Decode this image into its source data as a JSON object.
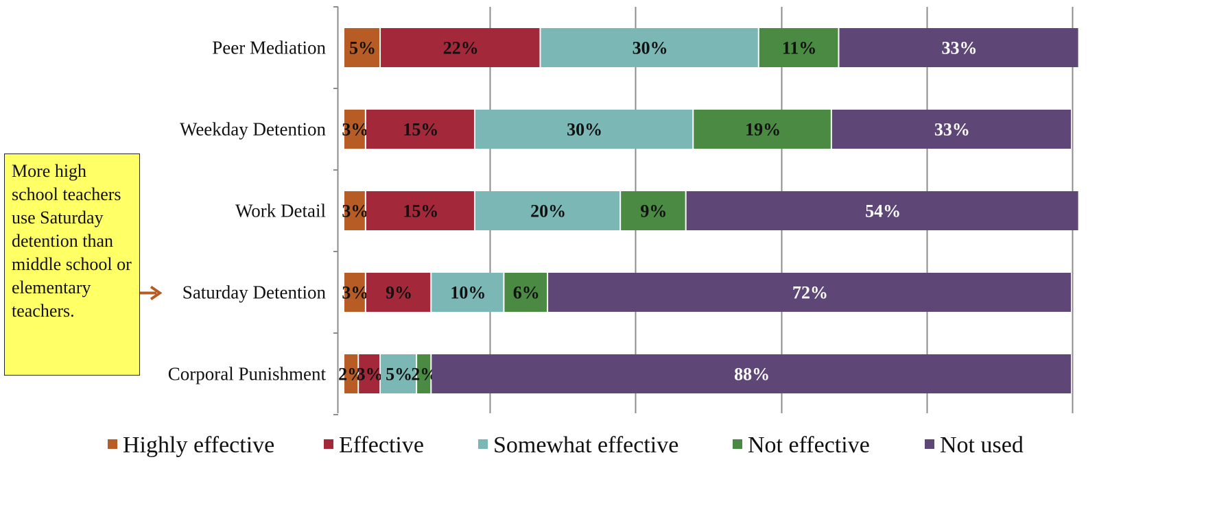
{
  "chart_data": {
    "type": "bar",
    "orientation": "horizontal",
    "stacked": true,
    "categories": [
      "Peer Mediation",
      "Weekday Detention",
      "Work Detail",
      "Saturday Detention",
      "Corporal Punishment"
    ],
    "series": [
      {
        "name": "Highly effective",
        "color": "#b85c25",
        "values": [
          5,
          3,
          3,
          3,
          2
        ]
      },
      {
        "name": "Effective",
        "color": "#a3283a",
        "values": [
          22,
          15,
          15,
          9,
          3
        ]
      },
      {
        "name": "Somewhat effective",
        "color": "#7ab7b5",
        "values": [
          30,
          30,
          20,
          10,
          5
        ]
      },
      {
        "name": "Not effective",
        "color": "#4a8a43",
        "values": [
          11,
          19,
          9,
          6,
          2
        ]
      },
      {
        "name": "Not used",
        "color": "#5e4676",
        "values": [
          33,
          33,
          54,
          72,
          88
        ]
      }
    ],
    "value_suffix": "%",
    "xlim": [
      0,
      100
    ],
    "grid": true,
    "legend_position": "bottom",
    "annotation": {
      "text": "More high school teachers use Saturday detention than middle school or elementary teachers.",
      "points_to": "Saturday Detention",
      "arrow_color": "#b85c25",
      "box_color": "#ffff66"
    }
  }
}
